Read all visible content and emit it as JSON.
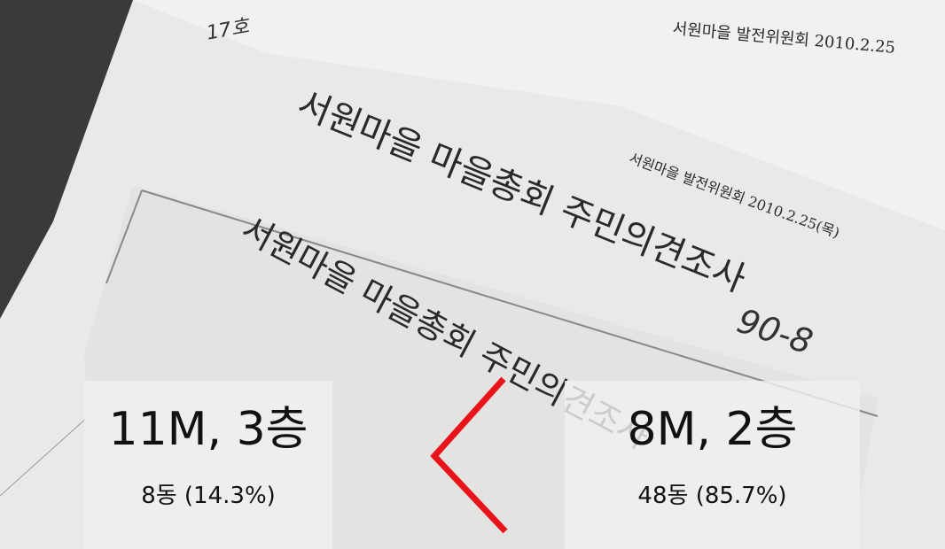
{
  "documents": {
    "back_header": "서원마을 발전위원회 2010.2.25",
    "back_title": "서원마을 마을총회 주민의견조사",
    "handwritten_code": "90-8",
    "handwritten_note": "17호",
    "front_header": "서원마을 발전위원회 2010.2.25(목)",
    "front_title": "서원마을 마을총회 주민의견조사"
  },
  "overlays": [
    {
      "heading": "11M, 3층",
      "detail": "8동 (14.3%)"
    },
    {
      "heading": "8M, 2층",
      "detail": "48동 (85.7%)"
    }
  ]
}
